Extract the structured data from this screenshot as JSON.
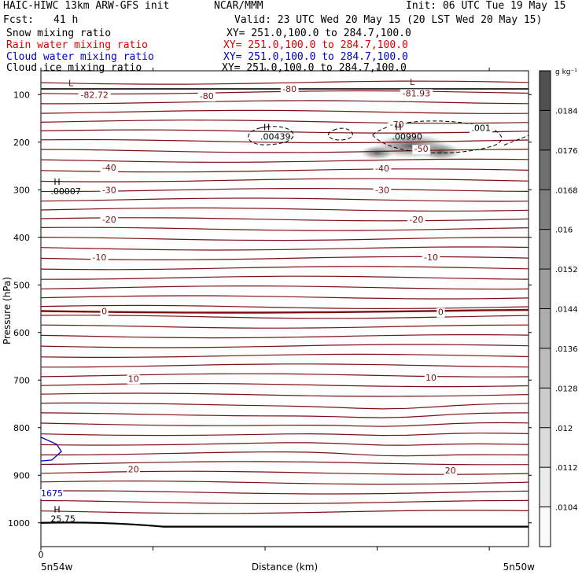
{
  "header": {
    "model_title": "HAIC-HIWC 13km ARW-GFS init",
    "org": "NCAR/MMM",
    "init": "Init: 06 UTC Tue 19 May 15",
    "fcst_label": "Fcst:",
    "fcst_value": "41 h",
    "valid": "Valid: 23 UTC Wed 20 May 15 (20 LST Wed 20 May 15)",
    "fields": [
      {
        "name": "Snow mixing ratio",
        "xy": "XY= 251.0,100.0 to 284.7,100.0",
        "color": "#000000"
      },
      {
        "name": "Rain water mixing ratio",
        "xy": "XY= 251.0,100.0 to 284.7,100.0",
        "color": "#e00000"
      },
      {
        "name": "Cloud water mixing ratio",
        "xy": "XY= 251.0,100.0 to 284.7,100.0",
        "color": "#0000c0"
      },
      {
        "name": "Cloud ice mixing ratio",
        "xy": "XY= 251.0,100.0 to 284.7,100.0",
        "color": "#000000"
      }
    ]
  },
  "colors": {
    "temperature_contour": "#7a1010",
    "freezing_level": "#7a1010",
    "surface_line": "#000000",
    "cloud_water": "#0000c0",
    "ice_dashed": "#000000"
  },
  "chart_data": {
    "type": "cross-section",
    "ylabel": "Pressure (hPa)",
    "xlabel": "Distance (km)",
    "ylim": [
      1050,
      50
    ],
    "yticks": [
      100,
      200,
      300,
      400,
      500,
      600,
      700,
      800,
      900,
      1000
    ],
    "x_left_tick": "0",
    "x_left_label": "5n54w",
    "x_right_label": "5n50w",
    "colorbar": {
      "unit": "g kg⁻¹",
      "labels": [
        ".0184",
        ".0176",
        ".0168",
        ".016",
        ".0152",
        ".0144",
        ".0136",
        ".0128",
        ".012",
        ".0112",
        ".0104"
      ]
    },
    "isotherm_labels": [
      {
        "text": "-82.72",
        "p": 100,
        "x": 0.11
      },
      {
        "text": "-80",
        "p": 103,
        "x": 0.34
      },
      {
        "text": "-80",
        "p": 88,
        "x": 0.51
      },
      {
        "text": "-81.93",
        "p": 97,
        "x": 0.77
      },
      {
        "text": "-70",
        "p": 162,
        "x": 0.73
      },
      {
        "text": "-50",
        "p": 214,
        "x": 0.78
      },
      {
        "text": "-40",
        "p": 253,
        "x": 0.14
      },
      {
        "text": "-40",
        "p": 255,
        "x": 0.7
      },
      {
        "text": "-30",
        "p": 300,
        "x": 0.14
      },
      {
        "text": "-30",
        "p": 300,
        "x": 0.7
      },
      {
        "text": "-20",
        "p": 362,
        "x": 0.14
      },
      {
        "text": "-20",
        "p": 362,
        "x": 0.77
      },
      {
        "text": "-10",
        "p": 442,
        "x": 0.12
      },
      {
        "text": "-10",
        "p": 442,
        "x": 0.8
      },
      {
        "text": "0",
        "p": 555,
        "x": 0.13
      },
      {
        "text": "0",
        "p": 557,
        "x": 0.82
      },
      {
        "text": "10",
        "p": 697,
        "x": 0.19
      },
      {
        "text": "10",
        "p": 695,
        "x": 0.8
      },
      {
        "text": "20",
        "p": 887,
        "x": 0.19
      },
      {
        "text": "20",
        "p": 890,
        "x": 0.84
      }
    ],
    "extrema_labels": [
      {
        "letter": "L",
        "value": "-82.72",
        "p": 82,
        "x": 0.05
      },
      {
        "letter": "L",
        "value": "-81.93",
        "p": 80,
        "x": 0.75
      },
      {
        "letter": "H",
        "value": ".00439",
        "p": 175,
        "x": 0.45
      },
      {
        "letter": "H",
        "value": ".00990",
        "p": 175,
        "x": 0.72
      },
      {
        "letter": "H",
        "value": ".00007",
        "p": 290,
        "x": 0.02
      },
      {
        "letter": "H",
        "value": "25.75",
        "p": 978,
        "x": 0.02
      }
    ],
    "contour_value_labels": [
      {
        "text": ".001",
        "p": 170,
        "x": 0.88,
        "color": "#000000"
      },
      {
        "text": "1675",
        "p": 938,
        "x": 0.0,
        "color": "#0000c0"
      }
    ]
  }
}
